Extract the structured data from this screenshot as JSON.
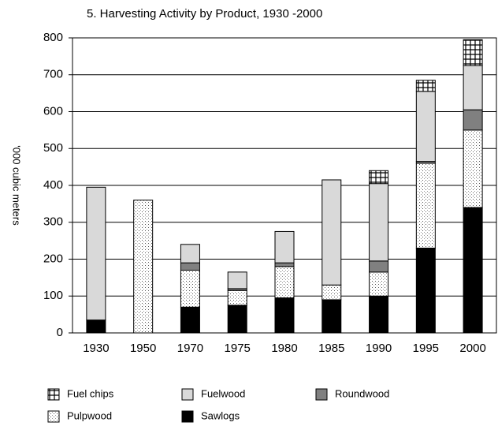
{
  "chart_data": {
    "type": "stacked_bar",
    "title": "5.  Harvesting Activity by Product, 1930 -2000",
    "y_label": "'000 cubic meters",
    "categories": [
      "1930",
      "1950",
      "1970",
      "1975",
      "1980",
      "1985",
      "1990",
      "1995",
      "2000"
    ],
    "series": [
      {
        "name": "Sawlogs",
        "color": "#000000",
        "values": [
          35,
          0,
          70,
          75,
          95,
          90,
          100,
          230,
          340
        ]
      },
      {
        "name": "Pulpwood",
        "color": "#e0e0e0",
        "values": [
          0,
          360,
          100,
          40,
          85,
          40,
          65,
          230,
          210
        ]
      },
      {
        "name": "Roundwood",
        "color": "#808080",
        "values": [
          0,
          0,
          20,
          5,
          10,
          0,
          30,
          5,
          55
        ]
      },
      {
        "name": "Fuelwood",
        "color": "#d9d9d9",
        "values": [
          360,
          0,
          50,
          45,
          85,
          285,
          210,
          190,
          120
        ]
      },
      {
        "name": "Fuel chips",
        "color": "#ffffff",
        "values": [
          0,
          0,
          0,
          0,
          0,
          0,
          35,
          30,
          70
        ]
      }
    ],
    "ylim": [
      0,
      800
    ],
    "yticks": [
      0,
      100,
      200,
      300,
      400,
      500,
      600,
      700,
      800
    ],
    "grid": true
  }
}
